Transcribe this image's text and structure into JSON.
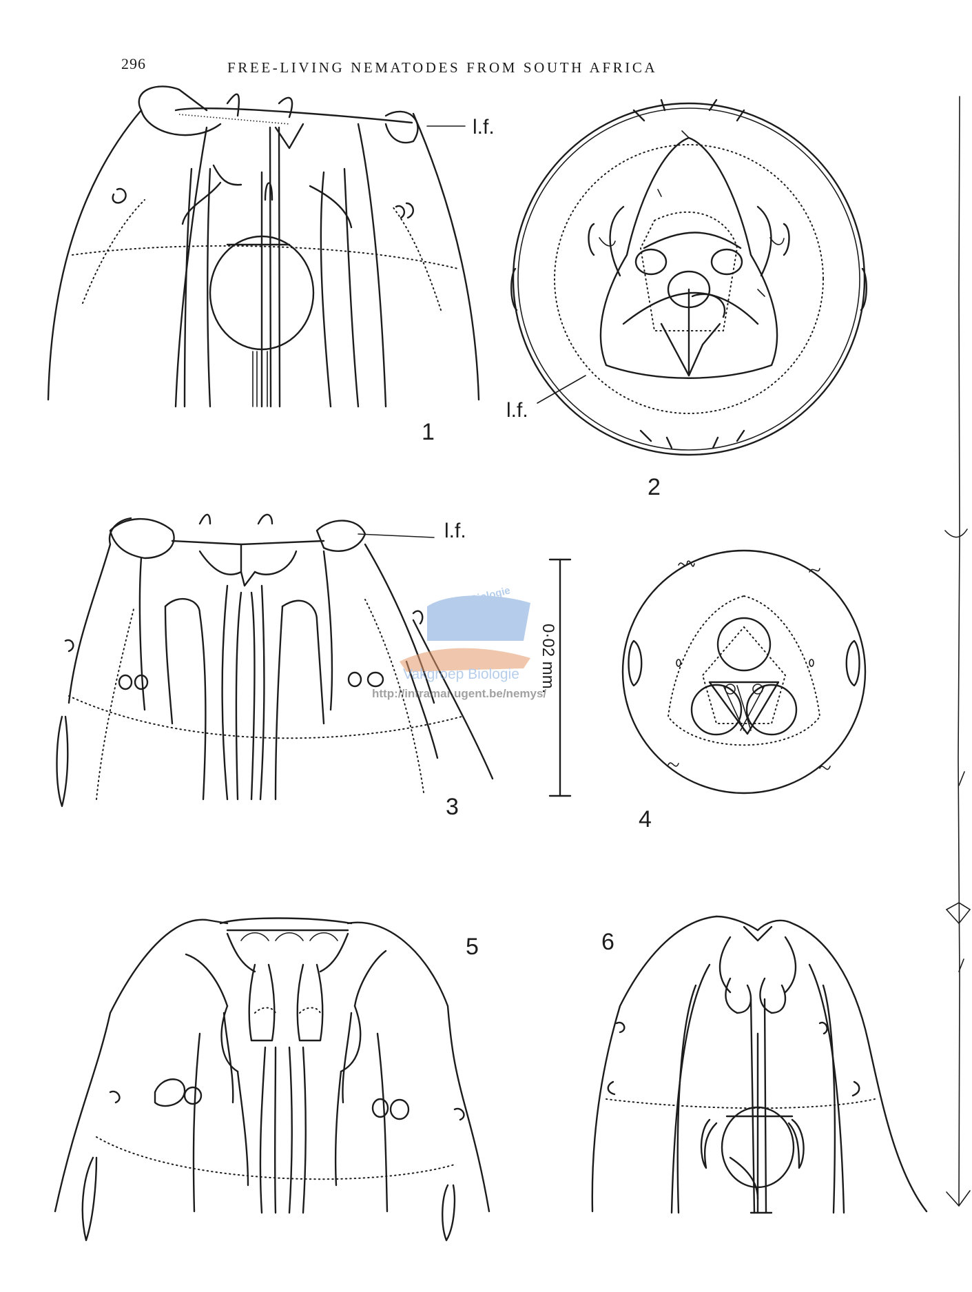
{
  "header": {
    "page_number": "296",
    "running_title": "FREE-LIVING NEMATODES FROM SOUTH AFRICA"
  },
  "figures": {
    "fig1": {
      "number": "1",
      "annotation": "l.f."
    },
    "fig2": {
      "number": "2",
      "annotation": "l.f."
    },
    "fig3": {
      "number": "3",
      "annotation": "l.f."
    },
    "fig4": {
      "number": "4"
    },
    "fig5": {
      "number": "5"
    },
    "fig6": {
      "number": "6"
    }
  },
  "scale_bar": {
    "label": "0·02 mm."
  },
  "watermark": {
    "line1": "Mariene Biologie",
    "line2": "Vakgroep Biologie",
    "url": "http://intramar.ugent.be/nemys/",
    "color": "#7aa6dc"
  }
}
